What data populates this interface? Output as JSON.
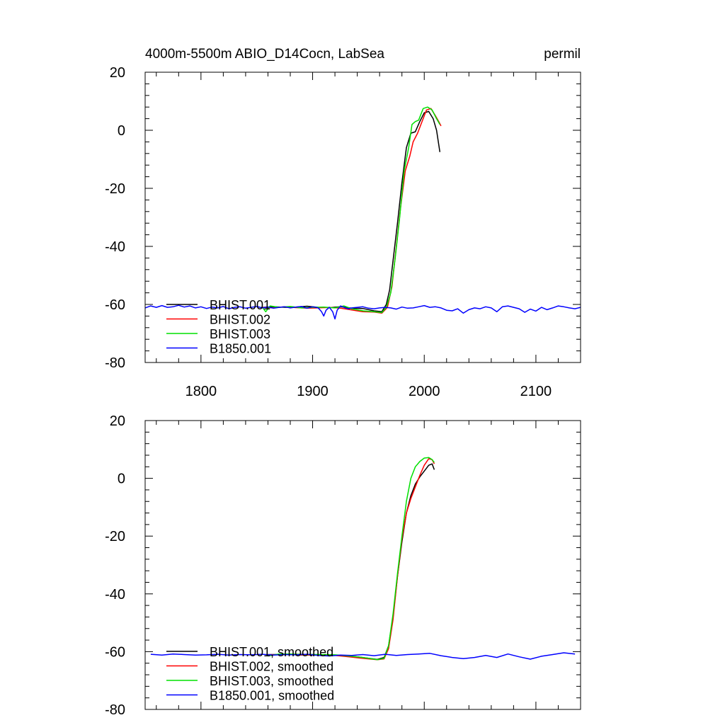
{
  "figure": {
    "title_left": "4000m-5500m ABIO_D14Cocn, LabSea",
    "title_right": "permil"
  },
  "chart_data": [
    {
      "type": "line",
      "title": "4000m-5500m ABIO_D14Cocn, LabSea",
      "ylabel": "permil",
      "xlim": [
        1750,
        2140
      ],
      "ylim": [
        -80,
        20
      ],
      "xticks": [
        1800,
        1900,
        2000,
        2100
      ],
      "yticks": [
        20,
        0,
        -20,
        -40,
        -60,
        -80
      ],
      "grid": false,
      "legend_position": "bottom-left",
      "series": [
        {
          "name": "BHIST.001",
          "color": "#000000",
          "x": [
            1855,
            1865,
            1875,
            1885,
            1895,
            1905,
            1915,
            1925,
            1935,
            1945,
            1955,
            1962,
            1966,
            1969,
            1972,
            1976,
            1980,
            1984,
            1988,
            1992,
            1996,
            2000,
            2004,
            2008,
            2011,
            2014
          ],
          "y": [
            -61,
            -60.8,
            -61,
            -60.9,
            -60.6,
            -61,
            -61.1,
            -60.8,
            -61.3,
            -61.4,
            -62.2,
            -62.5,
            -60,
            -55,
            -45,
            -32,
            -18,
            -6,
            -1,
            -0.5,
            3,
            6,
            6.5,
            4,
            0,
            -7.5
          ]
        },
        {
          "name": "BHIST.002",
          "color": "#ff0000",
          "x": [
            1855,
            1865,
            1875,
            1885,
            1895,
            1905,
            1915,
            1925,
            1935,
            1945,
            1955,
            1962,
            1967,
            1971,
            1975,
            1979,
            1983,
            1987,
            1990,
            1994,
            1998,
            2002,
            2006,
            2010,
            2013,
            2015
          ],
          "y": [
            -61,
            -61.2,
            -60.8,
            -61.1,
            -61.3,
            -61.2,
            -61,
            -61.3,
            -61.9,
            -62.5,
            -62.6,
            -63,
            -61,
            -54,
            -40,
            -26,
            -14,
            -9,
            -4,
            -1,
            3,
            7,
            7.5,
            5,
            3,
            1.5
          ]
        },
        {
          "name": "BHIST.003",
          "color": "#00e000",
          "x": [
            1855,
            1858,
            1862,
            1870,
            1880,
            1890,
            1900,
            1910,
            1920,
            1928,
            1935,
            1945,
            1955,
            1962,
            1966,
            1970,
            1974,
            1978,
            1982,
            1986,
            1989,
            1992,
            1995,
            1999,
            2003,
            2007,
            2011,
            2014
          ],
          "y": [
            -61,
            -62.5,
            -60.5,
            -61,
            -60.7,
            -61.2,
            -61,
            -60.9,
            -61.2,
            -60.5,
            -61.5,
            -62.2,
            -62.5,
            -62.8,
            -61,
            -56,
            -44,
            -30,
            -14,
            -6,
            2,
            3,
            3.5,
            7.5,
            8,
            7,
            4,
            2
          ]
        },
        {
          "name": "B1850.001",
          "color": "#0000ff",
          "x": [
            1750,
            1755,
            1760,
            1765,
            1770,
            1775,
            1780,
            1785,
            1790,
            1795,
            1800,
            1805,
            1810,
            1815,
            1820,
            1825,
            1830,
            1835,
            1840,
            1845,
            1850,
            1855,
            1860,
            1865,
            1870,
            1875,
            1880,
            1885,
            1890,
            1895,
            1900,
            1905,
            1908,
            1910,
            1912,
            1915,
            1918,
            1920,
            1922,
            1925,
            1928,
            1932,
            1935,
            1940,
            1945,
            1950,
            1955,
            1960,
            1965,
            1970,
            1975,
            1980,
            1985,
            1990,
            1995,
            2000,
            2005,
            2010,
            2015,
            2020,
            2025,
            2030,
            2035,
            2040,
            2045,
            2050,
            2055,
            2060,
            2065,
            2070,
            2075,
            2080,
            2085,
            2090,
            2095,
            2100,
            2105,
            2110,
            2115,
            2120,
            2125,
            2130,
            2135,
            2140
          ],
          "y": [
            -61.2,
            -60.5,
            -61,
            -60.4,
            -61,
            -60.8,
            -60.3,
            -60.9,
            -60.5,
            -61.2,
            -60.8,
            -61.4,
            -60.9,
            -61.2,
            -60.7,
            -61.5,
            -61,
            -60.8,
            -61.3,
            -61,
            -60.7,
            -61.2,
            -60.9,
            -61.3,
            -61,
            -60.8,
            -61.2,
            -60.9,
            -60.7,
            -61.3,
            -60.8,
            -61.2,
            -62.5,
            -64,
            -62,
            -61,
            -62.5,
            -65,
            -62,
            -60.5,
            -61,
            -61.5,
            -61.2,
            -61,
            -60.8,
            -61.3,
            -61.5,
            -61.2,
            -61,
            -61.2,
            -61.6,
            -60.9,
            -61.3,
            -61.2,
            -60.8,
            -60.4,
            -61,
            -60.8,
            -61.2,
            -62,
            -62.2,
            -61.5,
            -63,
            -61.8,
            -61.2,
            -61.5,
            -60.8,
            -61.2,
            -62.5,
            -60.8,
            -60.5,
            -61,
            -61.5,
            -62.7,
            -61.6,
            -62.3,
            -61,
            -61.8,
            -61.2,
            -60.5,
            -60.8,
            -61.2,
            -61.5,
            -61
          ]
        }
      ]
    },
    {
      "type": "line",
      "xlim": [
        1750,
        2140
      ],
      "ylim": [
        -80,
        20
      ],
      "xticks": [
        1800,
        1900,
        2000,
        2100
      ],
      "yticks": [
        20,
        0,
        -20,
        -40,
        -60,
        -80
      ],
      "grid": false,
      "legend_position": "bottom-left",
      "series": [
        {
          "name": "BHIST.001, smoothed",
          "color": "#000000",
          "x": [
            1860,
            1870,
            1880,
            1890,
            1900,
            1910,
            1920,
            1930,
            1940,
            1950,
            1958,
            1964,
            1968,
            1972,
            1976,
            1980,
            1984,
            1988,
            1992,
            1996,
            2000,
            2004,
            2007,
            2009
          ],
          "y": [
            -61,
            -61,
            -60.9,
            -60.9,
            -61,
            -61.1,
            -61.2,
            -61.4,
            -61.8,
            -62.3,
            -62.7,
            -62,
            -58,
            -48,
            -34,
            -22,
            -12,
            -6,
            -2,
            0.5,
            2.5,
            4.5,
            5,
            3
          ]
        },
        {
          "name": "BHIST.002, smoothed",
          "color": "#ff0000",
          "x": [
            1860,
            1870,
            1880,
            1890,
            1900,
            1910,
            1920,
            1930,
            1940,
            1950,
            1958,
            1964,
            1968,
            1972,
            1976,
            1980,
            1984,
            1988,
            1992,
            1996,
            2000,
            2004,
            2007,
            2009
          ],
          "y": [
            -61.1,
            -61,
            -61,
            -61.2,
            -61.2,
            -61.2,
            -61.3,
            -61.7,
            -62.1,
            -62.5,
            -62.8,
            -62.5,
            -59,
            -49,
            -34,
            -21,
            -12,
            -7,
            -3,
            1,
            4.5,
            6.8,
            6.5,
            5
          ]
        },
        {
          "name": "BHIST.003, smoothed",
          "color": "#00e000",
          "x": [
            1860,
            1870,
            1880,
            1890,
            1900,
            1910,
            1920,
            1930,
            1940,
            1950,
            1958,
            1964,
            1968,
            1972,
            1976,
            1980,
            1984,
            1988,
            1992,
            1996,
            2000,
            2004,
            2007,
            2009
          ],
          "y": [
            -61.5,
            -60.8,
            -60.8,
            -61,
            -61,
            -61,
            -61.1,
            -61.4,
            -61.8,
            -62.3,
            -62.8,
            -62.3,
            -58,
            -47,
            -33,
            -20,
            -8,
            0,
            4,
            5.8,
            7,
            7.2,
            6.5,
            5.5
          ]
        },
        {
          "name": "B1850.001, smoothed",
          "color": "#0000ff",
          "x": [
            1755,
            1765,
            1775,
            1785,
            1795,
            1805,
            1815,
            1825,
            1835,
            1845,
            1855,
            1865,
            1875,
            1885,
            1895,
            1905,
            1915,
            1925,
            1935,
            1945,
            1955,
            1965,
            1975,
            1985,
            1995,
            2005,
            2015,
            2025,
            2035,
            2045,
            2055,
            2065,
            2075,
            2085,
            2095,
            2105,
            2115,
            2125,
            2135
          ],
          "y": [
            -60.9,
            -61.2,
            -60.8,
            -61,
            -61.2,
            -61.1,
            -60.9,
            -61.2,
            -61,
            -61.1,
            -60.9,
            -61.2,
            -61,
            -61.1,
            -60.9,
            -61.3,
            -61.5,
            -61.2,
            -61.3,
            -61,
            -61.4,
            -60.9,
            -61.3,
            -61,
            -60.8,
            -60.6,
            -61.4,
            -62,
            -62.4,
            -62,
            -61.3,
            -62,
            -60.8,
            -61.8,
            -62.6,
            -61.6,
            -61,
            -60.4,
            -60.8
          ]
        }
      ]
    }
  ]
}
